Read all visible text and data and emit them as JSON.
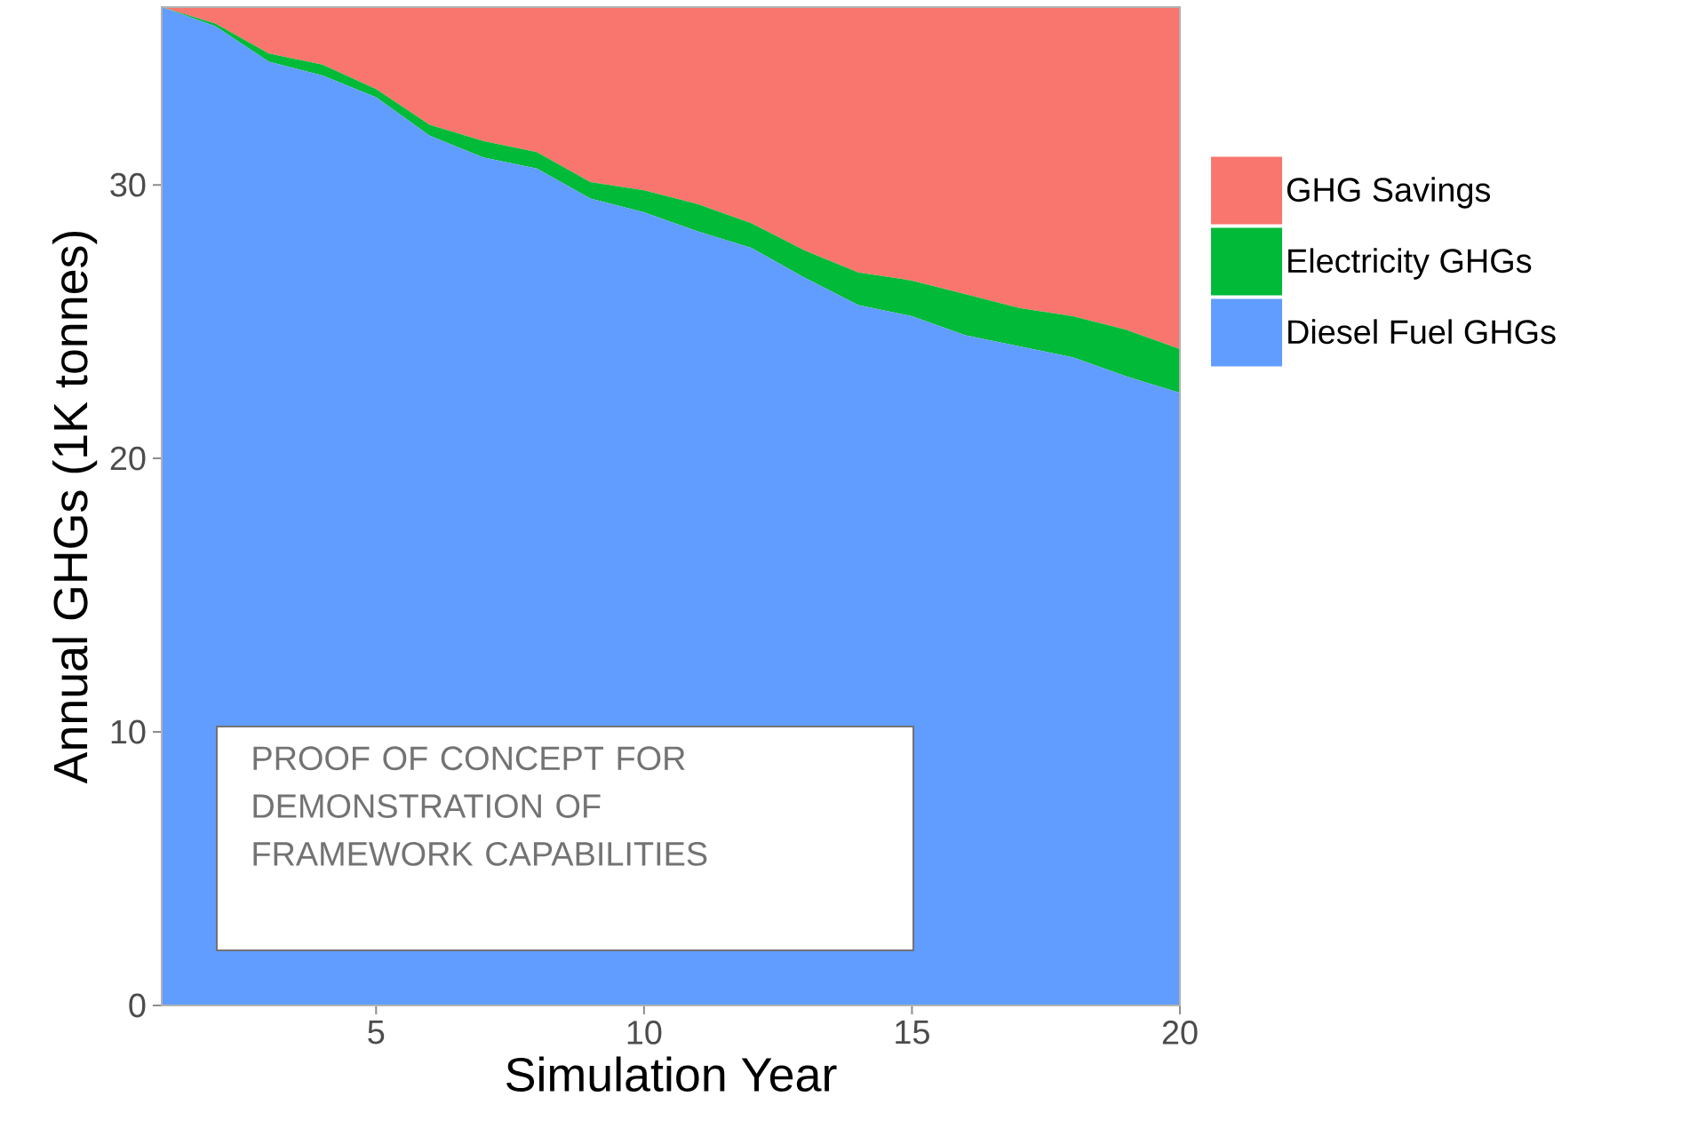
{
  "chart_data": {
    "type": "area",
    "stacked": true,
    "xlabel": "Simulation Year",
    "ylabel": "Annual GHGs (1K tonnes)",
    "x": [
      1,
      2,
      3,
      4,
      5,
      6,
      7,
      8,
      9,
      10,
      11,
      12,
      13,
      14,
      15,
      16,
      17,
      18,
      19,
      20
    ],
    "series": [
      {
        "name": "Diesel Fuel GHGs",
        "color": "#619cff",
        "values": [
          36.5,
          35.8,
          34.5,
          34.0,
          33.2,
          31.8,
          31.0,
          30.6,
          29.5,
          29.0,
          28.3,
          27.7,
          26.6,
          25.6,
          25.2,
          24.5,
          24.1,
          23.7,
          23.0,
          22.4
        ]
      },
      {
        "name": "Electricity GHGs",
        "color": "#00ba38",
        "values": [
          0,
          0.1,
          0.3,
          0.4,
          0.3,
          0.4,
          0.6,
          0.6,
          0.6,
          0.8,
          1.0,
          0.9,
          1.0,
          1.2,
          1.3,
          1.5,
          1.4,
          1.5,
          1.7,
          1.6
        ]
      },
      {
        "name": "GHG Savings",
        "color": "#f8766d",
        "values": [
          0,
          0.6,
          1.7,
          2.1,
          3.0,
          4.3,
          4.9,
          5.3,
          6.4,
          6.7,
          7.2,
          7.9,
          8.9,
          9.7,
          10.0,
          10.5,
          11.0,
          11.3,
          11.8,
          12.5
        ]
      }
    ],
    "xlim": [
      1,
      20
    ],
    "ylim": [
      0,
      36.5
    ],
    "xticks": [
      5,
      10,
      15,
      20
    ],
    "yticks": [
      0,
      10,
      20,
      30
    ],
    "grid": false,
    "legend": "right",
    "annotations": [
      "PROOF OF CONCEPT FOR DEMONSTRATION OF FRAMEWORK CAPABILITIES"
    ]
  }
}
